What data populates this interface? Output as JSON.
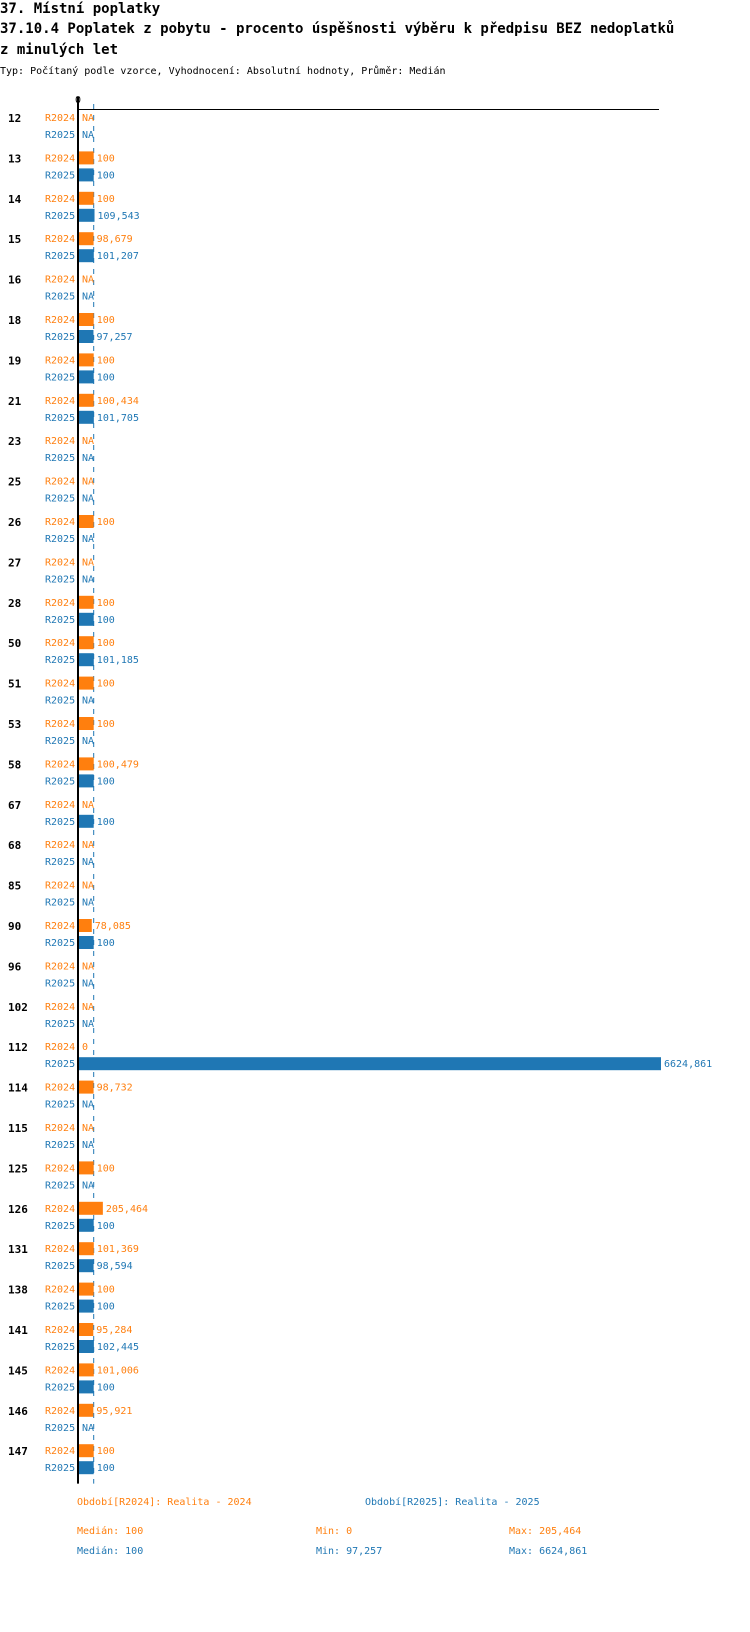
{
  "header": {
    "line1": "37. Místní poplatky",
    "line2": "37.10.4 Poplatek z pobytu - procento úspěšnosti výběru k předpisu BEZ nedoplatků",
    "line3": "z minulých let",
    "subtitle": "Typ: Počítaný podle vzorce, Vyhodnocení: Absolutní hodnoty, Průměr: Medián"
  },
  "colors": {
    "r2024": "#ff7f0e",
    "r2025": "#1f77b4"
  },
  "chart_data": {
    "type": "bar",
    "orientation": "horizontal",
    "axis_zero_label": "0",
    "xlim": [
      0,
      6624.861
    ],
    "series_labels": [
      "R2024",
      "R2025"
    ],
    "categories": [
      "12",
      "13",
      "14",
      "15",
      "16",
      "18",
      "19",
      "21",
      "23",
      "25",
      "26",
      "27",
      "28",
      "50",
      "51",
      "53",
      "58",
      "67",
      "68",
      "85",
      "90",
      "96",
      "102",
      "112",
      "114",
      "115",
      "125",
      "126",
      "131",
      "138",
      "141",
      "145",
      "146",
      "147"
    ],
    "series": [
      {
        "name": "R2024",
        "values": [
          "NA",
          "100",
          "100",
          "98,679",
          "NA",
          "100",
          "100",
          "100,434",
          "NA",
          "NA",
          "100",
          "NA",
          "100",
          "100",
          "100",
          "100",
          "100,479",
          "NA",
          "NA",
          "NA",
          "78,085",
          "NA",
          "NA",
          "0",
          "98,732",
          "NA",
          "100",
          "205,464",
          "101,369",
          "100",
          "95,284",
          "101,006",
          "95,921",
          "100"
        ]
      },
      {
        "name": "R2025",
        "values": [
          "NA",
          "100",
          "109,543",
          "101,207",
          "NA",
          "97,257",
          "100",
          "101,705",
          "NA",
          "NA",
          "NA",
          "NA",
          "100",
          "101,185",
          "NA",
          "NA",
          "100",
          "100",
          "NA",
          "NA",
          "100",
          "NA",
          "NA",
          "6624,861",
          "NA",
          "NA",
          "NA",
          "100",
          "98,594",
          "100",
          "102,445",
          "100",
          "NA",
          "100"
        ]
      }
    ]
  },
  "legend": {
    "r2024": "Období[R2024]: Realita - 2024",
    "r2025": "Období[R2025]: Realita - 2025"
  },
  "stats": {
    "r2024": {
      "median": "Medián: 100",
      "min": "Min: 0",
      "max": "Max: 205,464"
    },
    "r2025": {
      "median": "Medián: 100",
      "min": "Min: 97,257",
      "max": "Max: 6624,861"
    }
  }
}
